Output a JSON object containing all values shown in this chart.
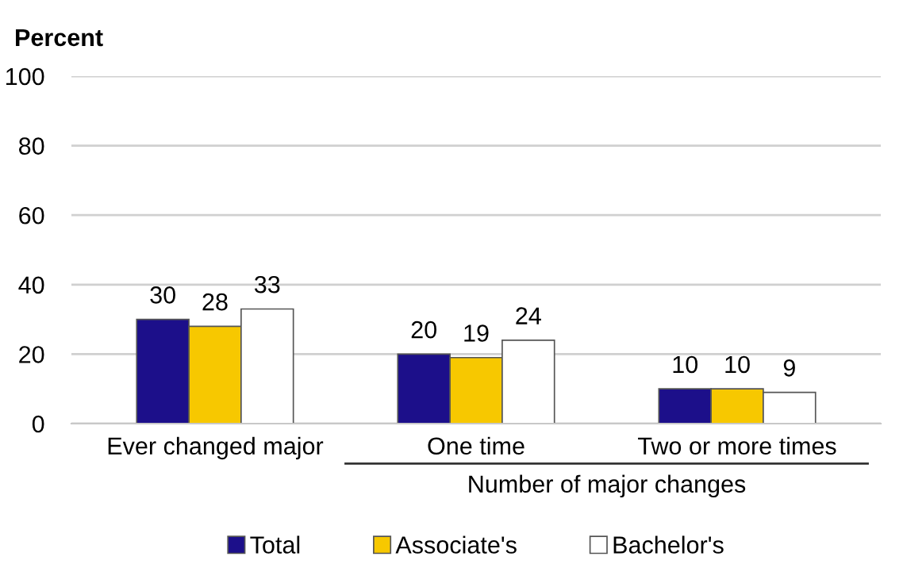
{
  "chart_data": {
    "type": "bar",
    "ylabel": "Percent",
    "categories": [
      "Ever changed major",
      "One time",
      "Two or more times"
    ],
    "series": [
      {
        "name": "Total",
        "color": "#1c0f8a",
        "values": [
          30,
          20,
          10
        ]
      },
      {
        "name": "Associate's",
        "color": "#f7c800",
        "values": [
          28,
          19,
          10
        ]
      },
      {
        "name": "Bachelor's",
        "color": "#ffffff",
        "values": [
          33,
          24,
          9
        ]
      }
    ],
    "ylim": [
      0,
      100
    ],
    "yticks": [
      0,
      20,
      40,
      60,
      80,
      100
    ],
    "grid": "y",
    "legend": "bottom",
    "data_labels": true,
    "annotations": [
      "Number of major changes"
    ]
  }
}
